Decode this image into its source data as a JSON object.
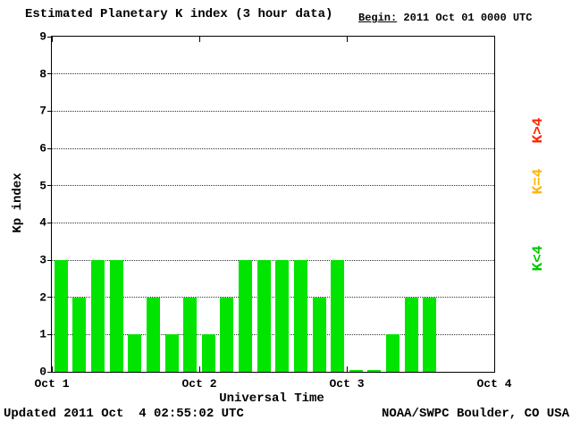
{
  "title": "Estimated Planetary K index (3 hour data)",
  "begin": {
    "label": "Begin:",
    "value": "2011 Oct 01 0000 UTC"
  },
  "footer": {
    "updated": "Updated 2011 Oct  4 02:55:02 UTC",
    "source": "NOAA/SWPC Boulder, CO USA"
  },
  "chart_data": {
    "type": "bar",
    "title": "Estimated Planetary K index (3 hour data)",
    "xlabel": "Universal Time",
    "ylabel": "Kp index",
    "ylim": [
      0,
      9
    ],
    "y_ticks": [
      0,
      1,
      2,
      3,
      4,
      5,
      6,
      7,
      8,
      9
    ],
    "x_ticks": [
      "Oct 1",
      "Oct 2",
      "Oct 3",
      "Oct 4"
    ],
    "hours_per_bar": 3,
    "grid": "horizontal-dotted",
    "bar_color": "#00e400",
    "values": [
      3,
      2,
      3,
      3,
      1,
      2,
      1,
      2,
      1,
      2,
      3,
      3,
      3,
      3,
      2,
      3,
      0,
      0,
      1,
      2,
      2,
      null,
      null,
      null
    ],
    "legend": [
      {
        "label": "K>4",
        "color": "#ff2600"
      },
      {
        "label": "K=4",
        "color": "#ffb300"
      },
      {
        "label": "K<4",
        "color": "#00c800"
      }
    ],
    "legend_position": "right-vertical"
  }
}
